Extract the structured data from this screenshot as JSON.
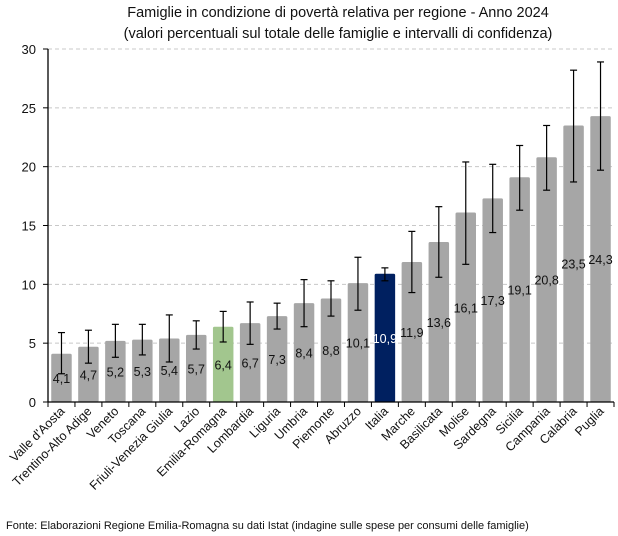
{
  "chart_data": {
    "type": "bar",
    "title": "Famiglie in condizione di povertà relativa per regione - Anno 2024",
    "subtitle": "(valori percentuali sul totale delle famiglie e intervalli di confidenza)",
    "xlabel": "",
    "ylabel": "",
    "ylim": [
      0,
      30
    ],
    "yticks": [
      0,
      5,
      10,
      15,
      20,
      25,
      30
    ],
    "grid": "horizontal dashed",
    "categories": [
      "Valle d'Aosta",
      "Trentino-Alto Adige",
      "Veneto",
      "Toscana",
      "Friuli-Venezia Giulia",
      "Lazio",
      "Emilia-Romagna",
      "Lombardia",
      "Liguria",
      "Umbria",
      "Piemonte",
      "Abruzzo",
      "Italia",
      "Marche",
      "Basilicata",
      "Molise",
      "Sardegna",
      "Sicilia",
      "Campania",
      "Calabria",
      "Puglia"
    ],
    "values": [
      4.1,
      4.7,
      5.2,
      5.3,
      5.4,
      5.7,
      6.4,
      6.7,
      7.3,
      8.4,
      8.8,
      10.1,
      10.9,
      11.9,
      13.6,
      16.1,
      17.3,
      19.1,
      20.8,
      23.5,
      24.3
    ],
    "labels": [
      "4,1",
      "4,7",
      "5,2",
      "5,3",
      "5,4",
      "5,7",
      "6,4",
      "6,7",
      "7,3",
      "8,4",
      "8,8",
      "10,1",
      "10,9",
      "11,9",
      "13,6",
      "16,1",
      "17,3",
      "19,1",
      "20,8",
      "23,5",
      "24,3"
    ],
    "ci_lower": [
      2.4,
      3.3,
      3.8,
      4.0,
      3.4,
      4.5,
      5.1,
      4.9,
      6.2,
      6.4,
      7.3,
      7.8,
      10.3,
      9.3,
      10.6,
      11.7,
      14.4,
      16.3,
      18.0,
      18.7,
      19.7
    ],
    "ci_upper": [
      5.9,
      6.1,
      6.6,
      6.6,
      7.4,
      6.9,
      7.7,
      8.5,
      8.4,
      10.4,
      10.3,
      12.3,
      11.4,
      14.5,
      16.6,
      20.4,
      20.2,
      21.8,
      23.5,
      28.2,
      28.9
    ],
    "colors": {
      "default": "#a6a6a6",
      "Emilia-Romagna": "#a2c68e",
      "Italia": "#002060"
    },
    "label_colors": {
      "default": "#111111",
      "Italia": "#ffffff"
    }
  },
  "footer": "Fonte: Elaborazioni Regione Emilia-Romagna su dati Istat (indagine sulle spese per consumi delle famiglie)"
}
